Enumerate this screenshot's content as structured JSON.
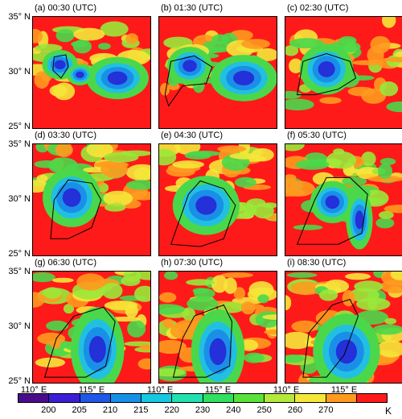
{
  "panels": [
    {
      "label": "(a) 00:30 (UTC)"
    },
    {
      "label": "(b) 01:30 (UTC)"
    },
    {
      "label": "(c) 02:30 (UTC)"
    },
    {
      "label": "(d) 03:30 (UTC)"
    },
    {
      "label": "(e) 04:30 (UTC)"
    },
    {
      "label": "(f) 05:30 (UTC)"
    },
    {
      "label": "(g) 06:30 (UTC)"
    },
    {
      "label": "(h) 07:30 (UTC)"
    },
    {
      "label": "(i) 08:30 (UTC)"
    }
  ],
  "lat_labels": [
    "35° N",
    "30° N",
    "25° N"
  ],
  "lon_labels": [
    "110° E",
    "115° E"
  ],
  "colorbar": {
    "ticks": [
      "200",
      "205",
      "210",
      "215",
      "220",
      "230",
      "240",
      "250",
      "260",
      "270"
    ],
    "unit": "K",
    "colors": [
      "#4b0c8c",
      "#3a1fd6",
      "#1f57e8",
      "#1a8fe8",
      "#16c8e0",
      "#22e0b0",
      "#30e060",
      "#58e23a",
      "#b4e83a",
      "#f5e73a",
      "#ff9a1f",
      "#ff1a1a"
    ]
  },
  "palette": {
    "cold_core": "#2430d8",
    "mid": "#22c0e0",
    "green": "#4ad84a",
    "warm": "#ff1a1a",
    "orange": "#ff9a1f",
    "yellow": "#f5e73a",
    "outline": "#000000"
  }
}
